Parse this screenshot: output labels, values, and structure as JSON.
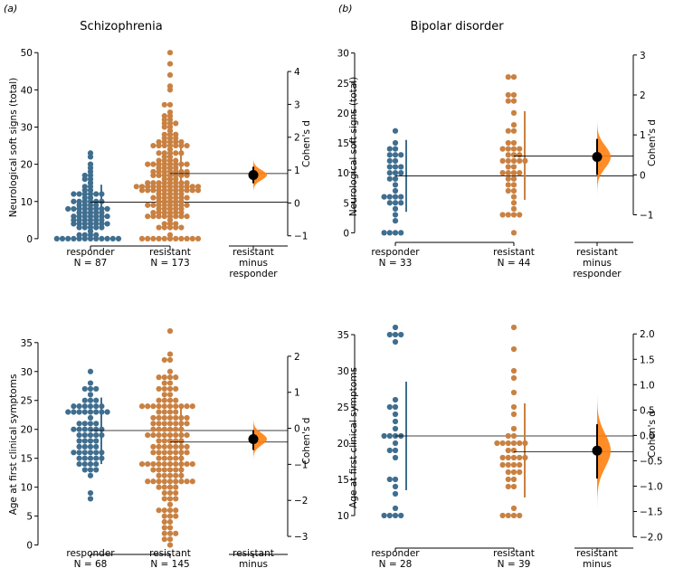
{
  "figure": {
    "panel_letters": [
      "(a)",
      "(b)"
    ],
    "colors": {
      "responder": "#3f6e8f",
      "resistant": "#c98142",
      "effect": "#ff7f0e",
      "axis": "#000000"
    }
  },
  "chart_data": [
    {
      "type": "scatter",
      "subtype": "swarm-with-effect-size",
      "title": "Schizophrenia",
      "ylabel": "Neurological soft signs (total)",
      "ylim": [
        -1,
        52
      ],
      "yticks": [
        0,
        10,
        20,
        30,
        40,
        50
      ],
      "right_ylabel": "Cohen's d",
      "right_yticks": [
        -1,
        0,
        1,
        2,
        3,
        4
      ],
      "right_ylim": [
        -1.2,
        4.8
      ],
      "groups": [
        {
          "name": "responder",
          "n_label": "N = 87",
          "mean": 9.8,
          "ci": [
            5,
            14.5
          ],
          "center": 8.5,
          "spread": 6.5
        },
        {
          "name": "resistant",
          "n_label": "N = 173",
          "mean": 17.5,
          "ci": [
            10,
            25
          ],
          "center": 16,
          "spread": 10
        }
      ],
      "xlabels": [
        "responder\nN = 87",
        "resistant\nN = 173",
        "resistant\nminus\nresponder"
      ],
      "effect": {
        "label": "resistant minus responder",
        "d": 0.85,
        "ci": [
          0.6,
          1.1
        ]
      }
    },
    {
      "type": "scatter",
      "subtype": "swarm-with-effect-size",
      "title": "Bipolar disorder",
      "ylabel": "Neurological soft signs (total)",
      "ylim": [
        -1,
        31
      ],
      "yticks": [
        0,
        5,
        10,
        15,
        20,
        25,
        30
      ],
      "right_ylabel": "Cohen's d",
      "right_yticks": [
        -1,
        0,
        1,
        2,
        3
      ],
      "right_ylim": [
        -1.6,
        3.2
      ],
      "groups": [
        {
          "name": "responder",
          "n_label": "N = 33",
          "mean": 9.5,
          "ci": [
            3.5,
            15.5
          ],
          "center": 8.5,
          "spread": 5.5
        },
        {
          "name": "resistant",
          "n_label": "N = 44",
          "mean": 12.8,
          "ci": [
            5.5,
            20.3
          ],
          "center": 13,
          "spread": 7
        }
      ],
      "xlabels": [
        "responder\nN = 33",
        "resistant\nN = 44",
        "resistant\nminus\nresponder"
      ],
      "effect": {
        "label": "resistant minus responder",
        "d": 0.45,
        "ci": [
          0.0,
          0.9
        ]
      }
    },
    {
      "type": "scatter",
      "subtype": "swarm-with-effect-size",
      "title": "",
      "ylabel": "Age at first clinical symptoms",
      "ylim": [
        -1,
        37
      ],
      "yticks": [
        0,
        5,
        10,
        15,
        20,
        25,
        30,
        35
      ],
      "right_ylabel": "Cohen's d",
      "right_yticks": [
        -3,
        -2,
        -1,
        0,
        1,
        2
      ],
      "right_ylim": [
        -3.4,
        2.7
      ],
      "groups": [
        {
          "name": "responder",
          "n_label": "N = 68",
          "mean": 19.8,
          "ci": [
            14,
            25.5
          ],
          "center": 19.5,
          "spread": 5
        },
        {
          "name": "resistant",
          "n_label": "N = 145",
          "mean": 17.8,
          "ci": [
            11.5,
            24
          ],
          "center": 17,
          "spread": 6.5
        }
      ],
      "xlabels": [
        "responder\nN = 68",
        "resistant\nN = 145",
        "resistant\nminus\nresponder"
      ],
      "effect": {
        "label": "resistant minus responder",
        "d": -0.3,
        "ci": [
          -0.6,
          -0.05
        ]
      }
    },
    {
      "type": "scatter",
      "subtype": "swarm-with-effect-size",
      "title": "",
      "ylabel": "Age at first clinical symptoms",
      "ylim": [
        6,
        36.5
      ],
      "yticks": [
        10,
        15,
        20,
        25,
        30,
        35
      ],
      "right_ylabel": "Cohen's d",
      "right_yticks": [
        -2.0,
        -1.5,
        -1.0,
        -0.5,
        0.0,
        0.5,
        1.0,
        1.5,
        2.0
      ],
      "right_ylim": [
        -2.15,
        2.2
      ],
      "groups": [
        {
          "name": "responder",
          "n_label": "N = 28",
          "mean": 21,
          "ci": [
            13.5,
            28.5
          ],
          "center": 21,
          "spread": 7
        },
        {
          "name": "resistant",
          "n_label": "N = 39",
          "mean": 18.8,
          "ci": [
            12.5,
            25.5
          ],
          "center": 18,
          "spread": 6
        }
      ],
      "xlabels": [
        "responder\nN = 28",
        "resistant\nN = 39",
        "resistant\nminus\nresponder"
      ],
      "effect": {
        "label": "resistant minus responder",
        "d": -0.3,
        "ci": [
          -0.85,
          0.22
        ]
      }
    }
  ]
}
